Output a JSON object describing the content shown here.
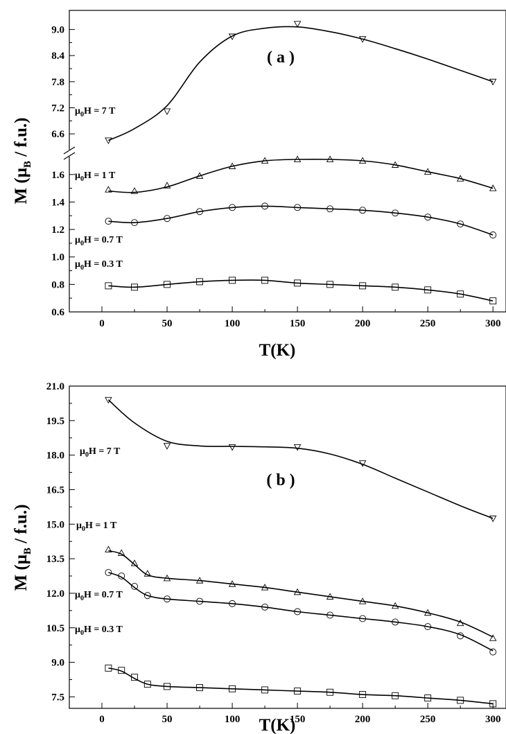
{
  "chart_data": [
    {
      "type": "line",
      "panel_label": "( a )",
      "xlabel": "T(K)",
      "ylabel_parts": {
        "main": "M (",
        "mu": "μ",
        "sub": "B",
        "rest": " / f.u.)"
      },
      "xlim": [
        -25,
        310
      ],
      "xticks": [
        "0",
        "50",
        "100",
        "150",
        "200",
        "250",
        "300"
      ],
      "axis_break": true,
      "upper_ylim": [
        6.3,
        9.2
      ],
      "upper_yticks": [
        "6.6",
        "7.2",
        "7.8",
        "8.4",
        "9.0"
      ],
      "lower_ylim": [
        0.6,
        1.72
      ],
      "lower_yticks": [
        "0.6",
        "0.8",
        "1.0",
        "1.2",
        "1.4",
        "1.6"
      ],
      "series": [
        {
          "name": "μ0H = 7 T",
          "marker": "triangle-down",
          "segment": "upper",
          "x": [
            5,
            50,
            100,
            150,
            200,
            300
          ],
          "y": [
            6.45,
            7.12,
            8.84,
            9.13,
            8.78,
            7.8
          ],
          "curve_x": [
            5,
            25,
            50,
            75,
            100,
            125,
            150,
            175,
            200,
            225,
            250,
            275,
            300
          ],
          "curve_y": [
            6.45,
            6.72,
            7.25,
            8.25,
            8.85,
            9.03,
            9.06,
            8.95,
            8.78,
            8.56,
            8.32,
            8.06,
            7.8
          ]
        },
        {
          "name": "μ0H = 1 T",
          "marker": "triangle-up",
          "segment": "lower",
          "x": [
            5,
            25,
            50,
            75,
            100,
            125,
            150,
            175,
            200,
            225,
            250,
            275,
            300
          ],
          "y": [
            1.49,
            1.48,
            1.52,
            1.59,
            1.66,
            1.7,
            1.71,
            1.71,
            1.7,
            1.67,
            1.62,
            1.57,
            1.5
          ],
          "curve_x": [
            5,
            25,
            50,
            75,
            100,
            125,
            150,
            175,
            200,
            225,
            250,
            275,
            300
          ],
          "curve_y": [
            1.48,
            1.47,
            1.51,
            1.59,
            1.66,
            1.7,
            1.71,
            1.71,
            1.7,
            1.67,
            1.62,
            1.57,
            1.5
          ]
        },
        {
          "name": "μ0H = 0.7 T",
          "marker": "circle",
          "segment": "lower",
          "x": [
            5,
            25,
            50,
            75,
            100,
            125,
            150,
            175,
            200,
            225,
            250,
            275,
            300
          ],
          "y": [
            1.26,
            1.25,
            1.28,
            1.33,
            1.36,
            1.37,
            1.36,
            1.35,
            1.34,
            1.32,
            1.29,
            1.24,
            1.16
          ],
          "curve_x": [
            5,
            25,
            50,
            75,
            100,
            125,
            150,
            175,
            200,
            225,
            250,
            275,
            300
          ],
          "curve_y": [
            1.26,
            1.25,
            1.28,
            1.33,
            1.36,
            1.37,
            1.36,
            1.35,
            1.34,
            1.32,
            1.29,
            1.24,
            1.16
          ]
        },
        {
          "name": "μ0H = 0.3 T",
          "marker": "square",
          "segment": "lower",
          "x": [
            5,
            25,
            50,
            75,
            100,
            125,
            150,
            175,
            200,
            225,
            250,
            275,
            300
          ],
          "y": [
            0.79,
            0.78,
            0.8,
            0.82,
            0.83,
            0.83,
            0.81,
            0.8,
            0.79,
            0.78,
            0.76,
            0.73,
            0.68
          ],
          "curve_x": [
            5,
            25,
            50,
            75,
            100,
            125,
            150,
            175,
            200,
            225,
            250,
            275,
            300
          ],
          "curve_y": [
            0.79,
            0.78,
            0.8,
            0.82,
            0.83,
            0.83,
            0.81,
            0.8,
            0.79,
            0.78,
            0.76,
            0.73,
            0.68
          ]
        }
      ]
    },
    {
      "type": "line",
      "panel_label": "( b )",
      "xlabel": "T(K)",
      "ylabel_parts": {
        "main": "M (",
        "mu": "μ",
        "sub": "B",
        "rest": " / f.u.)"
      },
      "xlim": [
        -25,
        310
      ],
      "xticks": [
        "0",
        "50",
        "100",
        "150",
        "200",
        "250",
        "300"
      ],
      "ylim": [
        7.0,
        21.0
      ],
      "yticks": [
        "7.5",
        "9.0",
        "10.5",
        "12.0",
        "13.5",
        "15.0",
        "16.5",
        "18.0",
        "19.5",
        "21.0"
      ],
      "series": [
        {
          "name": "μ0H = 7 T",
          "marker": "triangle-down",
          "x": [
            5,
            50,
            100,
            150,
            200,
            300
          ],
          "y": [
            20.4,
            18.4,
            18.35,
            18.35,
            17.65,
            15.25
          ],
          "curve_x": [
            5,
            25,
            50,
            75,
            100,
            125,
            150,
            175,
            200,
            225,
            250,
            275,
            300
          ],
          "curve_y": [
            20.4,
            19.4,
            18.6,
            18.4,
            18.38,
            18.36,
            18.3,
            18.05,
            17.6,
            17.0,
            16.4,
            15.8,
            15.25
          ]
        },
        {
          "name": "μ0H = 1 T",
          "marker": "triangle-up",
          "x": [
            5,
            15,
            25,
            35,
            50,
            75,
            100,
            125,
            150,
            175,
            200,
            225,
            250,
            275,
            300
          ],
          "y": [
            13.9,
            13.75,
            13.3,
            12.85,
            12.65,
            12.55,
            12.4,
            12.25,
            12.05,
            11.85,
            11.65,
            11.45,
            11.15,
            10.7,
            10.05
          ],
          "curve_x": [
            5,
            15,
            25,
            35,
            50,
            75,
            100,
            125,
            150,
            175,
            200,
            225,
            250,
            275,
            300
          ],
          "curve_y": [
            13.85,
            13.7,
            13.25,
            12.8,
            12.65,
            12.55,
            12.4,
            12.25,
            12.05,
            11.85,
            11.65,
            11.45,
            11.15,
            10.75,
            10.1
          ]
        },
        {
          "name": "μ0H = 0.7 T",
          "marker": "circle",
          "x": [
            5,
            15,
            25,
            35,
            50,
            75,
            100,
            125,
            150,
            175,
            200,
            225,
            250,
            275,
            300
          ],
          "y": [
            12.9,
            12.75,
            12.3,
            11.9,
            11.75,
            11.65,
            11.55,
            11.4,
            11.2,
            11.05,
            10.9,
            10.75,
            10.55,
            10.15,
            9.45
          ],
          "curve_x": [
            5,
            15,
            25,
            35,
            50,
            75,
            100,
            125,
            150,
            175,
            200,
            225,
            250,
            275,
            300
          ],
          "curve_y": [
            12.9,
            12.7,
            12.25,
            11.9,
            11.75,
            11.65,
            11.55,
            11.4,
            11.2,
            11.05,
            10.9,
            10.75,
            10.55,
            10.2,
            9.5
          ]
        },
        {
          "name": "μ0H = 0.3 T",
          "marker": "square",
          "x": [
            5,
            15,
            25,
            35,
            50,
            75,
            100,
            125,
            150,
            175,
            200,
            225,
            250,
            275,
            300
          ],
          "y": [
            8.75,
            8.65,
            8.35,
            8.05,
            7.95,
            7.9,
            7.85,
            7.8,
            7.75,
            7.7,
            7.6,
            7.55,
            7.45,
            7.35,
            7.2
          ],
          "curve_x": [
            5,
            15,
            25,
            35,
            50,
            75,
            100,
            125,
            150,
            175,
            200,
            225,
            250,
            275,
            300
          ],
          "curve_y": [
            8.75,
            8.62,
            8.3,
            8.05,
            7.95,
            7.9,
            7.85,
            7.8,
            7.75,
            7.7,
            7.6,
            7.55,
            7.45,
            7.35,
            7.2
          ]
        }
      ]
    }
  ],
  "annotations_a": [
    {
      "mu": "μ",
      "sub": "0",
      "text": "H = 7 T"
    },
    {
      "mu": "μ",
      "sub": "0",
      "text": "H = 1 T"
    },
    {
      "mu": "μ",
      "sub": "0",
      "text": "H = 0.7 T"
    },
    {
      "mu": "μ",
      "sub": "0",
      "text": "H = 0.3 T"
    }
  ],
  "annotations_b": [
    {
      "mu": "μ",
      "sub": "0",
      "text": "H = 7 T"
    },
    {
      "mu": "μ",
      "sub": "0",
      "text": "H = 1 T"
    },
    {
      "mu": "μ",
      "sub": "0",
      "text": "H = 0.7 T"
    },
    {
      "mu": "μ",
      "sub": "0",
      "text": "H = 0.3 T"
    }
  ]
}
